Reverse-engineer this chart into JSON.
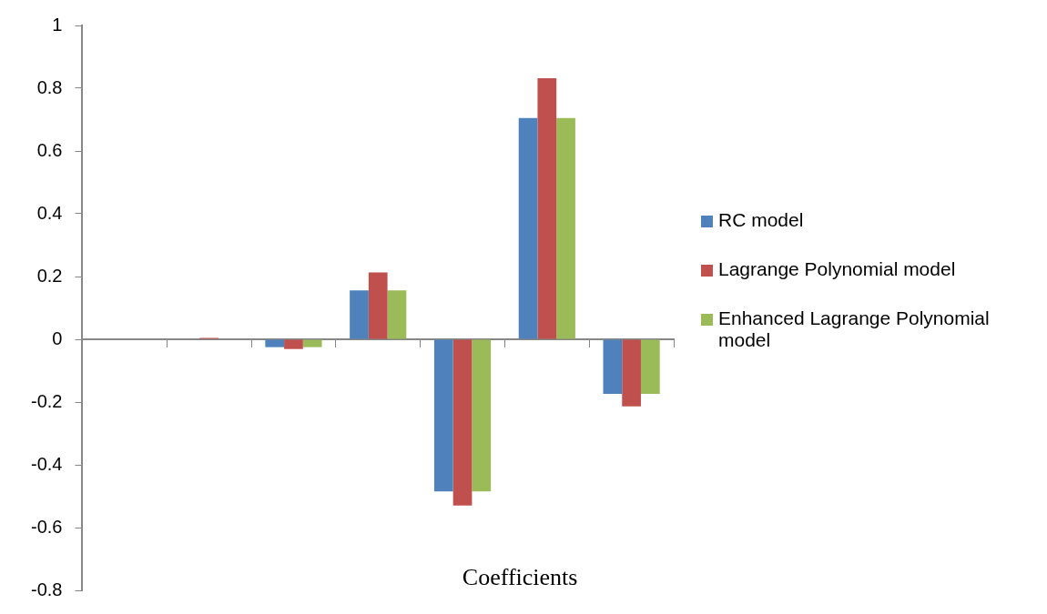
{
  "chart_data": {
    "type": "bar",
    "xlabel": "Coefficients",
    "categories": [
      null,
      null,
      null,
      null,
      null,
      null,
      null
    ],
    "series": [
      {
        "name": "RC model",
        "color": "#4f81bd",
        "values": [
          0,
          0,
          -0.025,
          0.156,
          -0.485,
          0.705,
          -0.174
        ]
      },
      {
        "name": "Lagrange Polynomial model",
        "color": "#c0504d",
        "values": [
          0,
          0.004,
          -0.031,
          0.213,
          -0.53,
          0.832,
          -0.214
        ]
      },
      {
        "name": "Enhanced Lagrange Polynomial model",
        "color": "#9bbb59",
        "values": [
          0,
          0,
          -0.025,
          0.156,
          -0.485,
          0.705,
          -0.174
        ]
      }
    ],
    "ylim": [
      -0.8,
      1
    ],
    "yticks": [
      -0.8,
      -0.6,
      -0.4,
      -0.2,
      0,
      0.2,
      0.4,
      0.6,
      0.8,
      1
    ],
    "legend": "right"
  }
}
